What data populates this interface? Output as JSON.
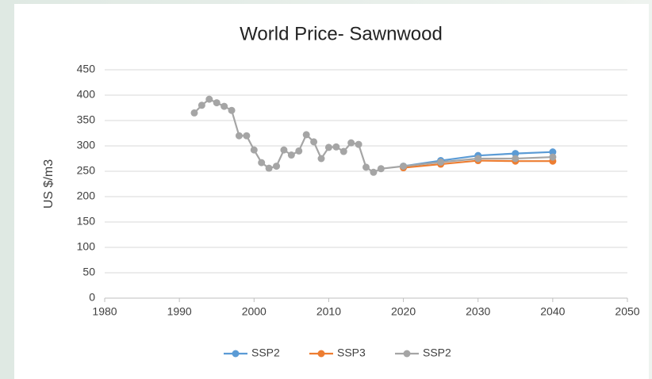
{
  "chart_data": {
    "type": "line",
    "title": "World Price- Sawnwood",
    "y_label": "US $/m3",
    "x": [
      1992,
      1993,
      1994,
      1995,
      1996,
      1997,
      1998,
      1999,
      2000,
      2001,
      2002,
      2003,
      2004,
      2005,
      2006,
      2007,
      2008,
      2009,
      2010,
      2011,
      2012,
      2013,
      2014,
      2015,
      2016,
      2017,
      2020,
      2025,
      2030,
      2035,
      2040
    ],
    "series": [
      {
        "name": "SSP2",
        "color": "#5b9bd5",
        "values": [
          null,
          null,
          null,
          null,
          null,
          null,
          null,
          null,
          null,
          null,
          null,
          null,
          null,
          null,
          null,
          null,
          null,
          null,
          null,
          null,
          null,
          null,
          null,
          null,
          null,
          null,
          260,
          271,
          281,
          285,
          288
        ]
      },
      {
        "name": "SSP3",
        "color": "#ed7d31",
        "values": [
          null,
          null,
          null,
          null,
          null,
          null,
          null,
          null,
          null,
          null,
          null,
          null,
          null,
          null,
          null,
          null,
          null,
          null,
          null,
          null,
          null,
          null,
          null,
          null,
          null,
          null,
          257,
          264,
          271,
          270,
          270
        ]
      },
      {
        "name": "SSP2",
        "color": "#a5a5a5",
        "values": [
          365,
          380,
          392,
          385,
          378,
          370,
          320,
          320,
          292,
          267,
          256,
          260,
          292,
          282,
          290,
          322,
          308,
          275,
          297,
          298,
          289,
          306,
          303,
          258,
          248,
          255,
          260,
          268,
          275,
          275,
          278
        ]
      }
    ],
    "xlim": [
      1980,
      2050
    ],
    "xticks": [
      1980,
      1990,
      2000,
      2010,
      2020,
      2030,
      2040,
      2050
    ],
    "ylim": [
      0,
      450
    ],
    "yticks": [
      0,
      50,
      100,
      150,
      200,
      250,
      300,
      350,
      400,
      450
    ],
    "grid": true,
    "legend": "bottom"
  }
}
